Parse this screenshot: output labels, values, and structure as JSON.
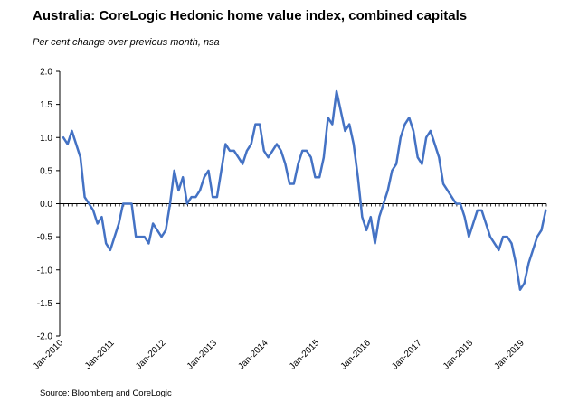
{
  "title": "Australia: CoreLogic Hedonic home value index, combined capitals",
  "subtitle": "Per cent change over previous month, nsa",
  "source": "Source: Bloomberg and CoreLogic",
  "colors": {
    "line": "#4472C4",
    "axis": "#000000",
    "background": "#ffffff"
  },
  "chart_data": {
    "type": "line",
    "title": "Australia: CoreLogic Hedonic home value index, combined capitals",
    "subtitle": "Per cent change over previous month, nsa",
    "xlabel": "",
    "ylabel": "",
    "ylim": [
      -2.0,
      2.0
    ],
    "yticks": [
      "2.0",
      "1.5",
      "1.0",
      "0.5",
      "0.0",
      "-0.5",
      "-1.0",
      "-1.5",
      "-2.0"
    ],
    "xticks": [
      "Jan-2010",
      "Jan-2011",
      "Jan-2012",
      "Jan-2013",
      "Jan-2014",
      "Jan-2015",
      "Jan-2016",
      "Jan-2017",
      "Jan-2018",
      "Jan-2019"
    ],
    "grid": false,
    "legend": "none",
    "x_start": "Jan-2010",
    "frequency": "monthly",
    "series": [
      {
        "values": [
          1.0,
          0.9,
          1.1,
          0.9,
          0.7,
          0.1,
          0.0,
          -0.1,
          -0.3,
          -0.2,
          -0.6,
          -0.7,
          -0.5,
          -0.3,
          0.0,
          0.0,
          0.0,
          -0.5,
          -0.5,
          -0.5,
          -0.6,
          -0.3,
          -0.4,
          -0.5,
          -0.4,
          0.0,
          0.5,
          0.2,
          0.4,
          0.0,
          0.1,
          0.1,
          0.2,
          0.4,
          0.5,
          0.1,
          0.1,
          0.5,
          0.9,
          0.8,
          0.8,
          0.7,
          0.6,
          0.8,
          0.9,
          1.2,
          1.2,
          0.8,
          0.7,
          0.8,
          0.9,
          0.8,
          0.6,
          0.3,
          0.3,
          0.6,
          0.8,
          0.8,
          0.7,
          0.4,
          0.4,
          0.7,
          1.3,
          1.2,
          1.7,
          1.4,
          1.1,
          1.2,
          0.9,
          0.4,
          -0.2,
          -0.4,
          -0.2,
          -0.6,
          -0.2,
          0.0,
          0.2,
          0.5,
          0.6,
          1.0,
          1.2,
          1.3,
          1.1,
          0.7,
          0.6,
          1.0,
          1.1,
          0.9,
          0.7,
          0.3,
          0.2,
          0.1,
          0.0,
          0.0,
          -0.2,
          -0.5,
          -0.3,
          -0.1,
          -0.1,
          -0.3,
          -0.5,
          -0.6,
          -0.7,
          -0.5,
          -0.5,
          -0.6,
          -0.9,
          -1.3,
          -1.2,
          -0.9,
          -0.7,
          -0.5,
          -0.4,
          -0.1
        ]
      }
    ]
  }
}
